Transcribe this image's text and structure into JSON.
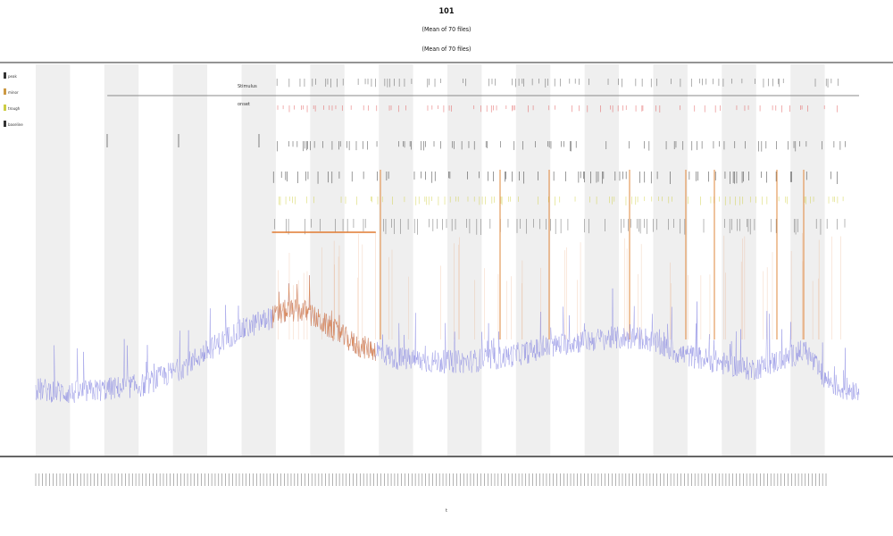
{
  "title": "101",
  "subtitle_lines": [
    "(Mean of 70 files)",
    "(Mean of 70 files)"
  ],
  "chart_data": {
    "type": "line",
    "title": "101",
    "xlabel": "t",
    "ylabel": "",
    "grid": false,
    "legend_position": "top-left",
    "legend_entries": [
      "peak",
      "minor",
      "trough",
      "baseline"
    ],
    "legend_colors": [
      "#333333",
      "#cc9944",
      "#cccc44",
      "#333333"
    ],
    "x_tick_count": 230,
    "band_count": 12,
    "series": [
      {
        "name": "",
        "color": "#8080e0",
        "highlight_color": "#e08a50",
        "x_range": [
          0,
          230
        ],
        "y_range": [
          0,
          1
        ],
        "trend_x": [
          0,
          10,
          20,
          30,
          40,
          50,
          55,
          60,
          62,
          68,
          70,
          75,
          80,
          85,
          90,
          95,
          100,
          110,
          120,
          130,
          140,
          150,
          160,
          170,
          175,
          180,
          190,
          200,
          210,
          215,
          220,
          225,
          230
        ],
        "trend_y": [
          0.17,
          0.16,
          0.17,
          0.18,
          0.22,
          0.28,
          0.31,
          0.33,
          0.34,
          0.36,
          0.37,
          0.37,
          0.34,
          0.31,
          0.28,
          0.27,
          0.25,
          0.24,
          0.24,
          0.25,
          0.27,
          0.29,
          0.3,
          0.3,
          0.28,
          0.26,
          0.24,
          0.22,
          0.25,
          0.27,
          0.2,
          0.17,
          0.17
        ],
        "highlight_x_range": [
          66,
          95
        ]
      }
    ],
    "annotation_rows": [
      {
        "label": "Stimulus",
        "color": "#444444"
      },
      {
        "label": "onset",
        "color": "#dd4444"
      },
      {
        "label": "",
        "color": "#222222"
      },
      {
        "label": "",
        "color": "#111111"
      },
      {
        "label": "",
        "color": "#cccc33"
      },
      {
        "label": "",
        "color": "#555555"
      }
    ],
    "hline": {
      "x_range": [
        66,
        95
      ],
      "color": "#e07a30"
    },
    "ref_line_x_range": [
      20,
      230
    ]
  }
}
